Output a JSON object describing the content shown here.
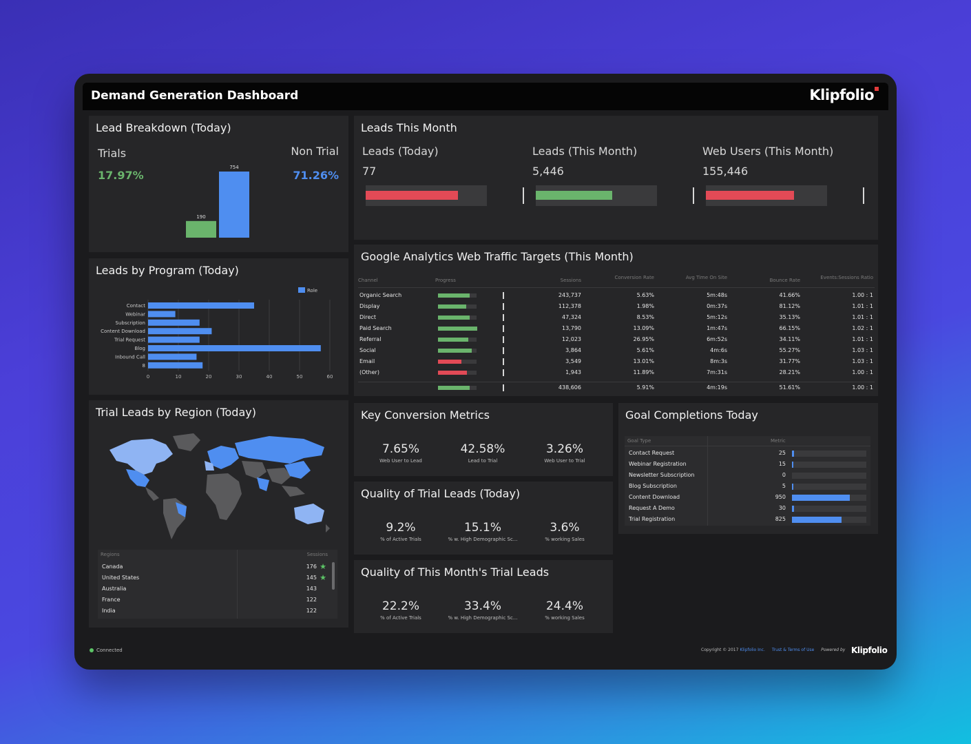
{
  "header": {
    "title": "Demand Generation Dashboard",
    "brand": "Klipfolio"
  },
  "colors": {
    "green": "#6ab46c",
    "blue": "#4f8ef0",
    "red": "#e24a56",
    "lightblue": "#8fb4f3"
  },
  "lead_breakdown": {
    "title": "Lead Breakdown (Today)",
    "trials_label": "Trials",
    "trials_pct": "17.97%",
    "nontrial_label": "Non Trial",
    "nontrial_pct": "71.26%",
    "chart_data": {
      "type": "bar",
      "categories": [
        "Trials",
        "Non Trial"
      ],
      "values": [
        190,
        754
      ],
      "labels": [
        "190",
        "754"
      ]
    }
  },
  "leads_month": {
    "title": "Leads This Month",
    "kpis": [
      {
        "label": "Leads (Today)",
        "value": "77",
        "progress": 0.76,
        "color": "red"
      },
      {
        "label": "Leads (This Month)",
        "value": "5,446",
        "progress": 0.63,
        "color": "green"
      },
      {
        "label": "Web Users (This Month)",
        "value": "155,446",
        "progress": 0.73,
        "color": "red"
      }
    ]
  },
  "leads_program": {
    "title": "Leads by Program (Today)",
    "legend": "Role",
    "chart_data": {
      "type": "bar",
      "orientation": "horizontal",
      "categories": [
        "Contact",
        "Webinar",
        "Subscription",
        "Content Download",
        "Trial Request",
        "Blog",
        "Inbound Call",
        "8"
      ],
      "values": [
        35,
        9,
        17,
        21,
        17,
        57,
        16,
        18
      ],
      "xticks": [
        "0",
        "10",
        "20",
        "30",
        "40",
        "50",
        "60"
      ],
      "xlim": [
        0,
        60
      ],
      "series": [
        {
          "name": "Role"
        }
      ]
    }
  },
  "ga": {
    "title": "Google Analytics Web Traffic Targets (This Month)",
    "columns": [
      "Channel",
      "Progress",
      "Sessions",
      "Conversion Rate",
      "Avg Time On Site",
      "Bounce Rate",
      "Events:Sessions Ratio"
    ],
    "rows": [
      {
        "channel": "Organic Search",
        "progress": 0.93,
        "color": "green",
        "sessions": "243,737",
        "conv": "5.63%",
        "time": "5m:48s",
        "bounce": "41.66%",
        "ratio": "1.00 : 1"
      },
      {
        "channel": "Display",
        "progress": 0.84,
        "color": "green",
        "sessions": "112,378",
        "conv": "1.98%",
        "time": "0m:37s",
        "bounce": "81.12%",
        "ratio": "1.01 : 1"
      },
      {
        "channel": "Direct",
        "progress": 0.93,
        "color": "green",
        "sessions": "47,324",
        "conv": "8.53%",
        "time": "5m:12s",
        "bounce": "35.13%",
        "ratio": "1.01 : 1"
      },
      {
        "channel": "Paid Search",
        "progress": 1.15,
        "color": "green",
        "sessions": "13,790",
        "conv": "13.09%",
        "time": "1m:47s",
        "bounce": "66.15%",
        "ratio": "1.02 : 1"
      },
      {
        "channel": "Referral",
        "progress": 0.89,
        "color": "green",
        "sessions": "12,023",
        "conv": "26.95%",
        "time": "6m:52s",
        "bounce": "34.11%",
        "ratio": "1.01 : 1"
      },
      {
        "channel": "Social",
        "progress": 1.0,
        "color": "green",
        "sessions": "3,864",
        "conv": "5.61%",
        "time": "4m:6s",
        "bounce": "55.27%",
        "ratio": "1.03 : 1"
      },
      {
        "channel": "Email",
        "progress": 0.7,
        "color": "red",
        "sessions": "3,549",
        "conv": "13.01%",
        "time": "8m:3s",
        "bounce": "31.77%",
        "ratio": "1.03 : 1"
      },
      {
        "channel": "(Other)",
        "progress": 0.85,
        "color": "red",
        "sessions": "1,943",
        "conv": "11.89%",
        "time": "7m:31s",
        "bounce": "28.21%",
        "ratio": "1.00 : 1"
      }
    ],
    "total": {
      "progress": 0.93,
      "color": "green",
      "sessions": "438,606",
      "conv": "5.91%",
      "time": "4m:19s",
      "bounce": "51.61%",
      "ratio": "1.00 : 1"
    }
  },
  "region": {
    "title": "Trial Leads by Region (Today)",
    "columns": [
      "Regions",
      "Sessions"
    ],
    "rows": [
      {
        "name": "Canada",
        "value": "176",
        "star": true
      },
      {
        "name": "United States",
        "value": "145",
        "star": true
      },
      {
        "name": "Australia",
        "value": "143",
        "star": false
      },
      {
        "name": "France",
        "value": "122",
        "star": false
      },
      {
        "name": "India",
        "value": "122",
        "star": false
      }
    ]
  },
  "key_conv": {
    "title": "Key Conversion Metrics",
    "items": [
      {
        "value": "7.65%",
        "label": "Web User to Lead"
      },
      {
        "value": "42.58%",
        "label": "Lead to Trial"
      },
      {
        "value": "3.26%",
        "label": "Web User to Trial"
      }
    ]
  },
  "quality_today": {
    "title": "Quality of Trial Leads (Today)",
    "items": [
      {
        "value": "9.2%",
        "label": "% of Active Trials"
      },
      {
        "value": "15.1%",
        "label": "% w. High Demographic Sc..."
      },
      {
        "value": "3.6%",
        "label": "% working Sales"
      }
    ]
  },
  "quality_month": {
    "title": "Quality of This Month's Trial Leads",
    "items": [
      {
        "value": "22.2%",
        "label": "% of Active Trials"
      },
      {
        "value": "33.4%",
        "label": "% w. High Demographic Sc..."
      },
      {
        "value": "24.4%",
        "label": "% working Sales"
      }
    ]
  },
  "goals": {
    "title": "Goal Completions Today",
    "columns": [
      "Goal Type",
      "Metric"
    ],
    "rows": [
      {
        "name": "Contact Request",
        "value": "25",
        "fill": 0.026
      },
      {
        "name": "Webinar Registration",
        "value": "15",
        "fill": 0.016
      },
      {
        "name": "Newsletter Subscription",
        "value": "0",
        "fill": 0
      },
      {
        "name": "Blog Subscription",
        "value": "5",
        "fill": 0.005
      },
      {
        "name": "Content Download",
        "value": "950",
        "fill": 0.78
      },
      {
        "name": "Request A Demo",
        "value": "30",
        "fill": 0.03
      },
      {
        "name": "Trial Registration",
        "value": "825",
        "fill": 0.67
      }
    ]
  },
  "footer": {
    "status": "Connected",
    "copyright": "Copyright © 2017",
    "company": "Klipfolio Inc.",
    "terms": "Trust & Terms of Use",
    "powered": "Powered by",
    "brand": "Klipfolio"
  }
}
